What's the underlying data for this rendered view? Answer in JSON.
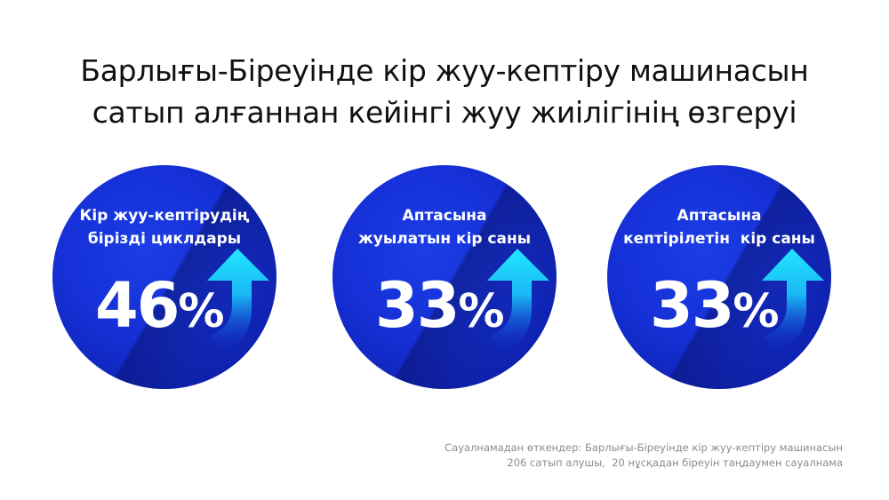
{
  "title": {
    "line1": "Барлығы-Біреуінде кір жуу-кептіру машинасын",
    "line2": "сатып алғаннан кейінгі жуу жиілігінің өзгеруі"
  },
  "stats": [
    {
      "label_line1": "Кір жуу-кептірудің",
      "label_line2": "бірізді циклдары",
      "value": "46",
      "unit": "%",
      "icon": "arrow-up-icon",
      "trend": "up"
    },
    {
      "label_line1": "Аптасына",
      "label_line2": "жуылатын кір саны",
      "value": "33",
      "unit": "%",
      "icon": "arrow-up-icon",
      "trend": "up"
    },
    {
      "label_line1": "Аптасына",
      "label_line2": "кептірілетін  кір саны",
      "value": "33",
      "unit": "%",
      "icon": "arrow-up-icon",
      "trend": "up"
    }
  ],
  "footnote": {
    "line1": "Сауалнамадан өткендер: Барлығы-Біреуінде кір жуу-кептіру машинасын",
    "line2": "206 сатып алушы,  20 нұсқадан біреуін таңдаумен сауалнама"
  },
  "colors": {
    "circle": "#1530d6",
    "arrow_light": "#1fe0ff",
    "arrow_dark": "#1530d6",
    "text": "#ffffff"
  }
}
